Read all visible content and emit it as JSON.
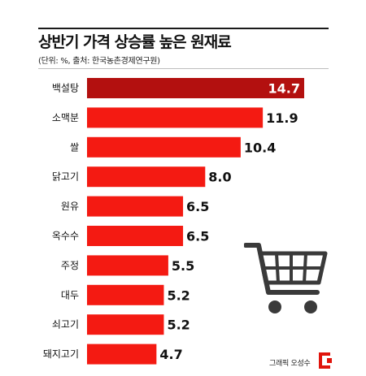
{
  "title": "상반기 가격 상승률 높은 원재료",
  "subtitle": "(단위: %, 출처: 한국농촌경제연구원)",
  "credit": "그래픽 오성수",
  "icons": {
    "illustration": "shopping-cart-icon",
    "logo": "brand-logo-icon"
  },
  "colors": {
    "bar": "#f41a12",
    "bar_highlight": "#b3100f",
    "value_on_highlight": "#ffffff",
    "value": "#111111"
  },
  "chart_data": {
    "type": "bar",
    "orientation": "horizontal",
    "categories": [
      "백설탕",
      "소맥분",
      "쌀",
      "닭고기",
      "원유",
      "옥수수",
      "주정",
      "대두",
      "쇠고기",
      "돼지고기"
    ],
    "values": [
      14.7,
      11.9,
      10.4,
      8.0,
      6.5,
      6.5,
      5.5,
      5.2,
      5.2,
      4.7
    ],
    "value_labels": [
      "14.7",
      "11.9",
      "10.4",
      "8.0",
      "6.5",
      "6.5",
      "5.5",
      "5.2",
      "5.2",
      "4.7"
    ],
    "highlight_index": 0,
    "title": "상반기 가격 상승률 높은 원재료",
    "xlabel": "",
    "ylabel": "",
    "xlim": [
      0,
      14.7
    ],
    "grid": false,
    "legend": "none"
  }
}
